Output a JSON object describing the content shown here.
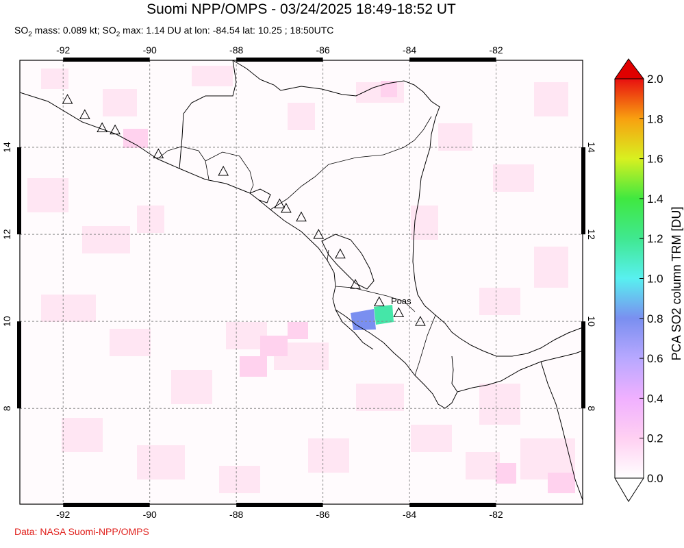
{
  "title": "Suomi NPP/OMPS - 03/24/2025 18:49-18:52 UT",
  "subtitle": {
    "prefix": "SO",
    "sub1": "2",
    "mass_text": " mass: 0.089 kt; SO",
    "sub2": "2",
    "max_text": " max: 1.14 DU at lon: -84.54 lat: 10.25 ; 18:50UTC"
  },
  "credit": "Data: NASA Suomi-NPP/OMPS",
  "map": {
    "lon_range": [
      -93,
      -80
    ],
    "lat_range": [
      5.8,
      16
    ],
    "lon_ticks": [
      "-92",
      "-90",
      "-88",
      "-86",
      "-84",
      "-82"
    ],
    "lon_tick_values": [
      -92,
      -90,
      -88,
      -86,
      -84,
      -82
    ],
    "lat_ticks": [
      "14",
      "12",
      "10",
      "8"
    ],
    "lat_tick_values": [
      14,
      12,
      10,
      8
    ],
    "grid": "dashed",
    "volcano_label": "Poas",
    "volcanoes": [
      {
        "lon": -91.9,
        "lat": 15.1
      },
      {
        "lon": -91.5,
        "lat": 14.75
      },
      {
        "lon": -91.1,
        "lat": 14.45
      },
      {
        "lon": -90.8,
        "lat": 14.4
      },
      {
        "lon": -89.8,
        "lat": 13.85
      },
      {
        "lon": -88.3,
        "lat": 13.45
      },
      {
        "lon": -87.0,
        "lat": 12.7
      },
      {
        "lon": -86.85,
        "lat": 12.6
      },
      {
        "lon": -86.5,
        "lat": 12.4
      },
      {
        "lon": -86.1,
        "lat": 12.0
      },
      {
        "lon": -85.6,
        "lat": 11.55
      },
      {
        "lon": -85.25,
        "lat": 10.85
      },
      {
        "lon": -84.7,
        "lat": 10.45
      },
      {
        "lon": -84.25,
        "lat": 10.2
      },
      {
        "lon": -83.75,
        "lat": 10.0
      }
    ],
    "so2_hotspots": [
      {
        "lon": -85.0,
        "lat": 10.1,
        "value": 0.8,
        "color": "#7a8ff0"
      },
      {
        "lon": -84.5,
        "lat": 10.25,
        "value": 1.14,
        "color": "#45e6a8"
      }
    ]
  },
  "colorbar": {
    "label": "PCA SO2 column TRM [DU]",
    "range": [
      0.0,
      2.0
    ],
    "ticks": [
      "2.0",
      "1.8",
      "1.6",
      "1.4",
      "1.2",
      "1.0",
      "0.8",
      "0.6",
      "0.4",
      "0.2",
      "0.0"
    ],
    "colors": [
      "#ffffff",
      "#ffc8f0",
      "#d8a0ff",
      "#7a8ff0",
      "#58f0f0",
      "#40e870",
      "#c8f020",
      "#f8e820",
      "#f8a010",
      "#f03010",
      "#e00000"
    ]
  }
}
